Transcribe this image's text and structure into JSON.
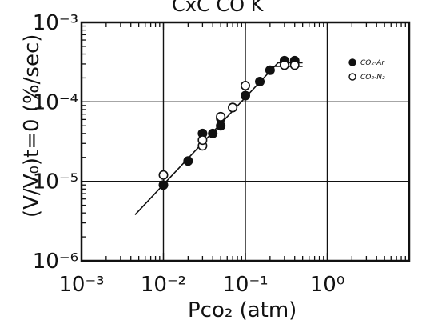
{
  "header": {
    "partial_caption": "CxC CO K"
  },
  "chart_data": {
    "type": "scatter",
    "title": "",
    "xlabel": "Pco₂ (atm)",
    "ylabel": "(V/V₀)t=0 (%/sec)",
    "xscale": "log",
    "yscale": "log",
    "xlim": [
      0.001,
      10
    ],
    "ylim": [
      1e-06,
      0.001
    ],
    "grid": true,
    "legend_position": "top-right",
    "x_tick_labels": [
      "10⁻³",
      "10⁻²",
      "10⁻¹",
      "10⁰"
    ],
    "y_tick_labels": [
      "10⁻⁶",
      "10⁻⁵",
      "10⁻⁴",
      "10⁻³"
    ],
    "series": [
      {
        "name": "CO₂-Ar",
        "marker": "filled-circle",
        "color": "#111111",
        "x": [
          0.01,
          0.02,
          0.03,
          0.04,
          0.05,
          0.05,
          0.07,
          0.1,
          0.15,
          0.2,
          0.3,
          0.4
        ],
        "y": [
          9e-06,
          1.8e-05,
          4e-05,
          4e-05,
          5e-05,
          6.2e-05,
          8.5e-05,
          0.00012,
          0.00018,
          0.00025,
          0.00033,
          0.00033
        ]
      },
      {
        "name": "CO₂-N₂",
        "marker": "open-circle",
        "color": "#111111",
        "x": [
          0.01,
          0.03,
          0.03,
          0.05,
          0.07,
          0.1,
          0.3,
          0.4
        ],
        "y": [
          1.2e-05,
          2.8e-05,
          3.3e-05,
          6.5e-05,
          8.5e-05,
          0.00016,
          0.00029,
          0.00029
        ]
      }
    ],
    "fit_lines": [
      {
        "x": [
          0.0045,
          0.25,
          0.5
        ],
        "y": [
          3.8e-06,
          0.00031,
          0.00031
        ]
      },
      {
        "x": [
          0.21,
          0.5
        ],
        "y": [
          0.00028,
          0.00028
        ]
      }
    ]
  }
}
